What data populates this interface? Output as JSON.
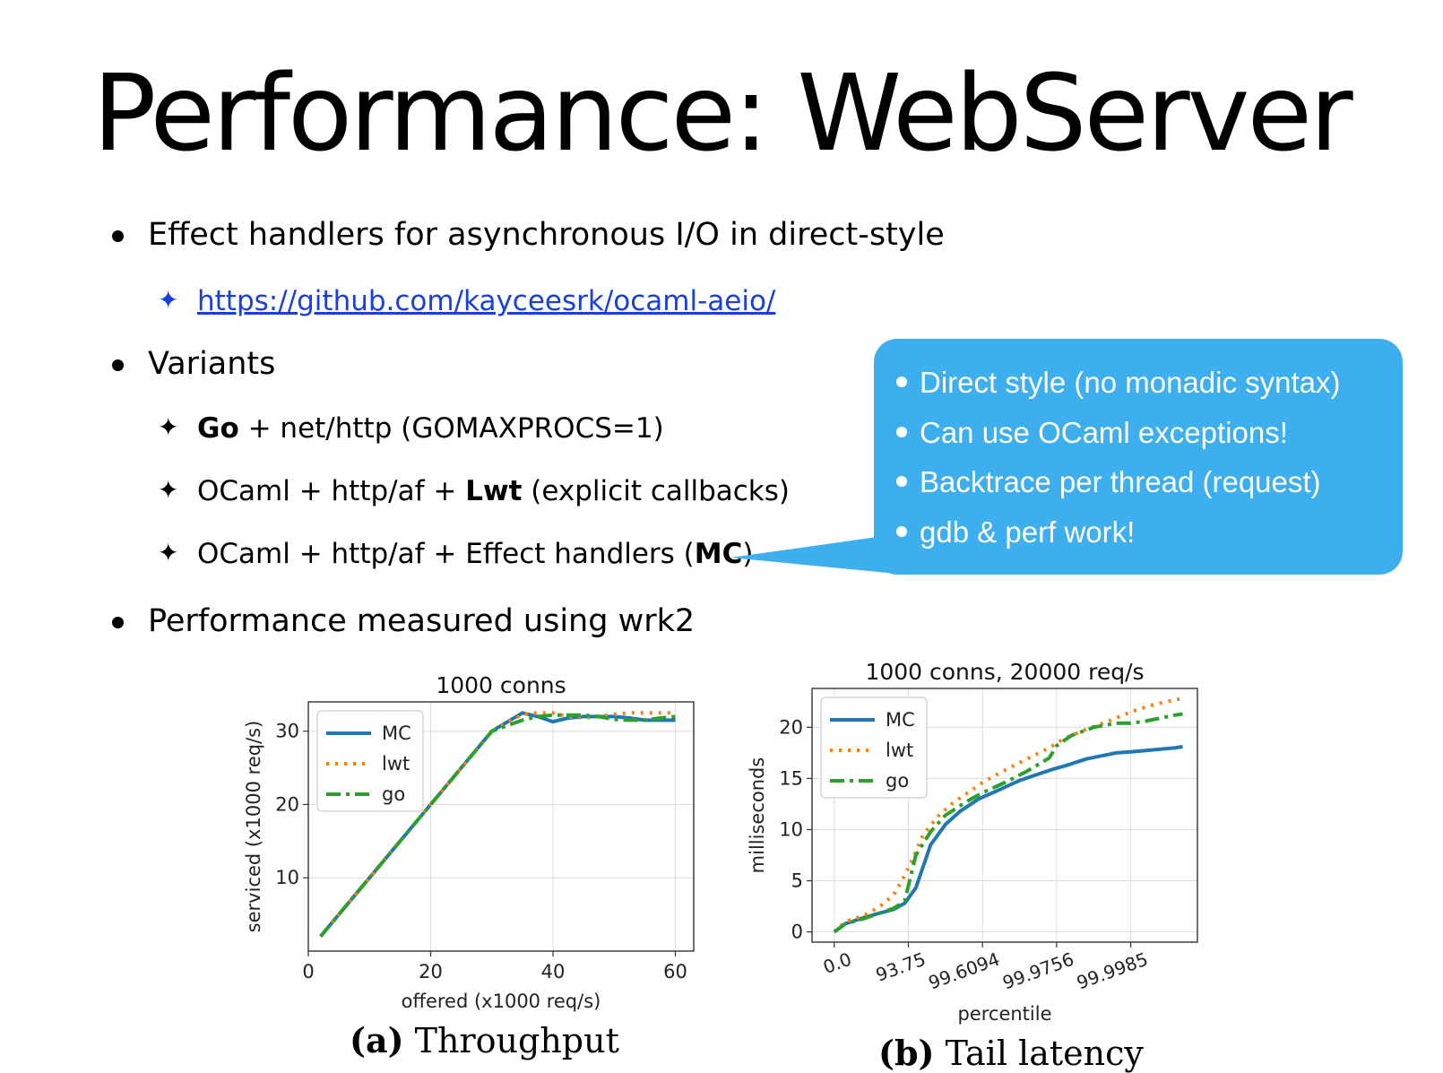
{
  "slide": {
    "title": "Performance: WebServer",
    "bullets": [
      "Effect handlers for asynchronous I/O in direct-style",
      "Variants",
      "Performance measured using wrk2"
    ],
    "link": "https://github.com/kayceesrk/ocaml-aeio/",
    "variants": [
      {
        "bold": "Go",
        "rest": " + net/http (GOMAXPROCS=1)"
      },
      {
        "pre": "OCaml + http/af + ",
        "bold": "Lwt",
        "post": " (explicit callbacks)"
      },
      {
        "pre": "OCaml + http/af + Effect handlers (",
        "bold": "MC",
        "post": ")"
      }
    ],
    "callout": [
      "Direct style (no monadic syntax)",
      "Can use OCaml exceptions!",
      "Backtrace per thread (request)",
      "gdb & perf work!"
    ],
    "captions": {
      "a_label": "(a)",
      "a_text": " Throughput",
      "b_label": "(b)",
      "b_text": " Tail latency"
    }
  },
  "colors": {
    "MC": "#1f77b4",
    "lwt": "#ff7f0e",
    "go": "#2ca02c",
    "callout": "#3daeee",
    "link": "#1a3fe0"
  },
  "chart_data": [
    {
      "type": "line",
      "title": "1000 conns",
      "xlabel": "offered (x1000 req/s)",
      "ylabel": "serviced (x1000 req/s)",
      "xlim": [
        0,
        63
      ],
      "ylim": [
        0,
        34
      ],
      "xticks": [
        0,
        20,
        40,
        60
      ],
      "yticks": [
        10,
        20,
        30
      ],
      "grid": true,
      "legend": "top-left",
      "series": [
        {
          "name": "MC",
          "style": "solid",
          "x": [
            2,
            5,
            10,
            15,
            20,
            25,
            30,
            35,
            37.5,
            40,
            42.5,
            45,
            47.5,
            50,
            52.5,
            55,
            57.5,
            60
          ],
          "y": [
            2,
            5,
            10,
            15,
            20,
            25,
            30,
            32.5,
            32,
            31.3,
            31.8,
            32,
            32,
            32,
            31.8,
            31.5,
            31.5,
            31.5
          ]
        },
        {
          "name": "lwt",
          "style": "dotted",
          "x": [
            2,
            5,
            10,
            15,
            20,
            25,
            30,
            35,
            37.5,
            40,
            42.5,
            45,
            47.5,
            50,
            52.5,
            55,
            57.5,
            60
          ],
          "y": [
            2,
            5,
            10,
            15,
            20,
            25,
            30,
            32.3,
            32.5,
            32.5,
            32,
            31.8,
            32,
            32.3,
            32.5,
            32.5,
            32.5,
            32.5
          ]
        },
        {
          "name": "go",
          "style": "dashdot",
          "x": [
            2,
            5,
            10,
            15,
            20,
            25,
            30,
            35,
            37.5,
            40,
            42.5,
            45,
            47.5,
            50,
            52.5,
            55,
            57.5,
            60
          ],
          "y": [
            2,
            5,
            10,
            15,
            20,
            25,
            30,
            31.5,
            32,
            32.2,
            32.2,
            32.2,
            32,
            31.6,
            31.5,
            31.5,
            31.8,
            32
          ]
        }
      ]
    },
    {
      "type": "line",
      "title": "1000 conns, 20000 req/s",
      "xlabel": "percentile",
      "ylabel": "milliseconds",
      "xticks_labels": [
        "0.0",
        "93.75",
        "99.6094",
        "99.9756",
        "99.9985"
      ],
      "xlim": [
        -0.3,
        4.9
      ],
      "ylim": [
        -1,
        23.8
      ],
      "yticks": [
        0,
        5,
        10,
        15,
        20
      ],
      "grid": true,
      "legend": "top-left",
      "series": [
        {
          "name": "MC",
          "style": "solid",
          "x": [
            0,
            0.15,
            0.4,
            0.6,
            0.8,
            0.95,
            1.0,
            1.1,
            1.3,
            1.5,
            1.7,
            1.95,
            2.2,
            2.5,
            2.7,
            2.95,
            3.1,
            3.4,
            3.6,
            3.8,
            4.0,
            4.3,
            4.6,
            4.7
          ],
          "y": [
            0,
            0.8,
            1.4,
            1.8,
            2.2,
            2.8,
            3.3,
            4.3,
            8.5,
            10.5,
            11.8,
            13.0,
            13.8,
            14.8,
            15.3,
            15.9,
            16.2,
            16.9,
            17.2,
            17.5,
            17.6,
            17.8,
            18,
            18.1
          ]
        },
        {
          "name": "lwt",
          "style": "dotted",
          "x": [
            0,
            0.15,
            0.4,
            0.6,
            0.8,
            0.95,
            1.05,
            1.2,
            1.4,
            1.6,
            1.8,
            2.0,
            2.3,
            2.6,
            2.9,
            3.1,
            3.4,
            3.7,
            4.0,
            4.3,
            4.6,
            4.7
          ],
          "y": [
            0,
            1.0,
            1.6,
            2.4,
            3.6,
            5.5,
            7.0,
            9.5,
            11.3,
            12.6,
            13.6,
            14.6,
            15.8,
            16.9,
            18.0,
            18.9,
            19.8,
            20.6,
            21.5,
            22.2,
            22.7,
            22.8
          ]
        },
        {
          "name": "go",
          "style": "dashdot",
          "x": [
            0,
            0.15,
            0.4,
            0.6,
            0.8,
            0.95,
            1.0,
            1.1,
            1.3,
            1.5,
            1.8,
            2.0,
            2.3,
            2.6,
            2.9,
            3.0,
            3.2,
            3.5,
            3.8,
            4.0,
            4.2,
            4.4,
            4.6,
            4.7
          ],
          "y": [
            0,
            0.8,
            1.3,
            1.8,
            2.3,
            3.0,
            4.5,
            7.5,
            9.8,
            11.4,
            12.8,
            13.6,
            14.6,
            15.7,
            17.0,
            18.2,
            19.2,
            20.0,
            20.4,
            20.4,
            20.6,
            20.9,
            21.2,
            21.3
          ]
        }
      ]
    }
  ]
}
